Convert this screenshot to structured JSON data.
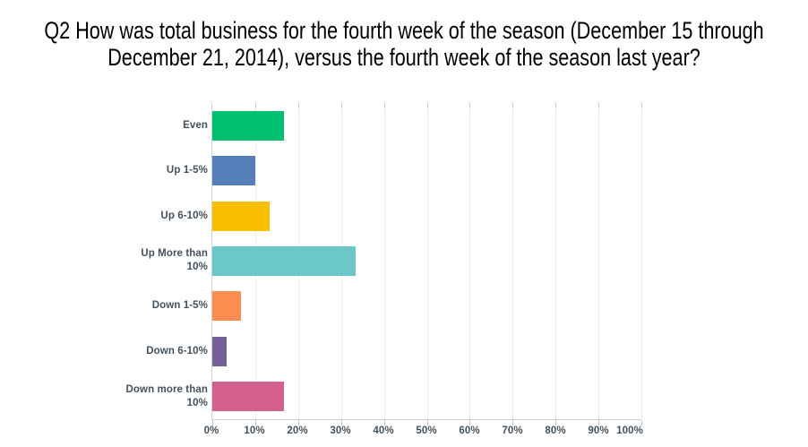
{
  "title": {
    "lines": [
      "Q2 How was total business for the fourth week of the season (December 15 through",
      "December 21, 2014), versus the fourth week of the season last year?"
    ]
  },
  "chart_data": {
    "type": "bar",
    "orientation": "horizontal",
    "title": "Q2 How was total business for the fourth week of the season (December 15 through December 21, 2014), versus the fourth week of the season last year?",
    "categories": [
      "Even",
      "Up 1-5%",
      "Up 6-10%",
      "Up More than 10%",
      "Down 1-5%",
      "Down 6-10%",
      "Down more than 10%"
    ],
    "values": [
      16.67,
      10,
      13.33,
      33.33,
      6.67,
      3.33,
      16.67
    ],
    "unit": "%",
    "bar_colors": [
      "#00BF6F",
      "#5380B8",
      "#F9BE00",
      "#6CC7CA",
      "#FB8D51",
      "#76609B",
      "#D4618D"
    ],
    "xlabel": "",
    "ylabel": "",
    "xlim": [
      0,
      100
    ],
    "x_tick_labels": [
      "0%",
      "10%",
      "20%",
      "30%",
      "40%",
      "50%",
      "60%",
      "70%",
      "80%",
      "90%",
      "100%"
    ],
    "grid": true,
    "legend": false,
    "axis_color": "#cfd4d9",
    "label_color": "#44515D",
    "title_color": "#000000"
  }
}
